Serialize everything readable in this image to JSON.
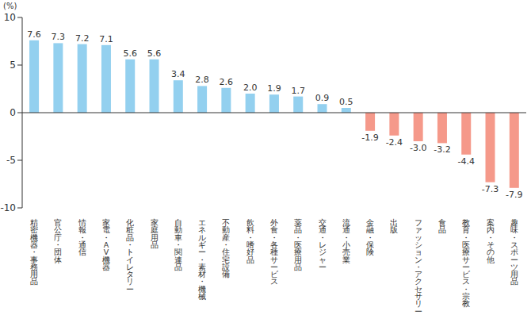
{
  "chart_data": {
    "type": "bar",
    "ylabel": "(%)",
    "categories": [
      "精密機器・事務用品",
      "官公庁・団体",
      "情報・通信",
      "家電・AV機器",
      "化粧品・トイレタリー",
      "家庭用品",
      "自動車・関連品",
      "エネルギー・素材・機械",
      "不動産・住宅設備",
      "飲料・嗜好品",
      "外食・各種サービス",
      "薬品・医療用品",
      "交通・レジャー",
      "流通・小売業",
      "金融・保険",
      "出版",
      "ファッション・アクセサリー",
      "食品",
      "教育・医療サービス・宗教",
      "案内・その他",
      "趣味・スポーツ用品"
    ],
    "values": [
      7.6,
      7.3,
      7.2,
      7.1,
      5.6,
      5.6,
      3.4,
      2.8,
      2.6,
      2.0,
      1.9,
      1.7,
      0.9,
      0.5,
      -1.9,
      -2.4,
      -3.0,
      -3.2,
      -4.4,
      -7.3,
      -7.9
    ],
    "value_labels": [
      "7.6",
      "7.3",
      "7.2",
      "7.1",
      "5.6",
      "5.6",
      "3.4",
      "2.8",
      "2.6",
      "2.0",
      "1.9",
      "1.7",
      "0.9",
      "0.5",
      "-1.9",
      "-2.4",
      "-3.0",
      "-3.2",
      "-4.4",
      "-7.3",
      "-7.9"
    ],
    "colors": [
      "#93d0ef",
      "#93d0ef",
      "#93d0ef",
      "#93d0ef",
      "#93d0ef",
      "#93d0ef",
      "#93d0ef",
      "#93d0ef",
      "#93d0ef",
      "#93d0ef",
      "#93d0ef",
      "#93d0ef",
      "#93d0ef",
      "#93d0ef",
      "#f5998a",
      "#f5998a",
      "#f5998a",
      "#f5998a",
      "#f5998a",
      "#f5998a",
      "#f5998a"
    ],
    "ylim": [
      -10,
      10
    ],
    "yticks": [
      -10,
      -5,
      0,
      5,
      10
    ],
    "grid": false,
    "data_labels": true
  }
}
